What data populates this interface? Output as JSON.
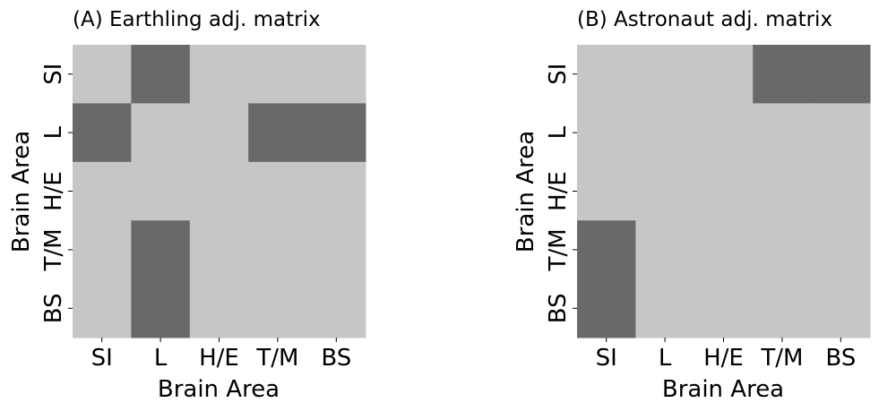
{
  "colors": {
    "zero": "#c6c6c6",
    "one": "#696969",
    "tick": "#000000"
  },
  "chart_data": [
    {
      "type": "heatmap",
      "title": "(A) Earthling adj. matrix",
      "xlabel": "Brain Area",
      "ylabel": "Brain Area",
      "x_categories": [
        "SI",
        "L",
        "H/E",
        "T/M",
        "BS"
      ],
      "y_categories": [
        "SI",
        "L",
        "H/E",
        "T/M",
        "BS"
      ],
      "values": [
        [
          0,
          1,
          0,
          0,
          0
        ],
        [
          1,
          0,
          0,
          1,
          1
        ],
        [
          0,
          0,
          0,
          0,
          0
        ],
        [
          0,
          1,
          0,
          0,
          0
        ],
        [
          0,
          1,
          0,
          0,
          0
        ]
      ],
      "colorbar": false
    },
    {
      "type": "heatmap",
      "title": "(B) Astronaut adj. matrix",
      "xlabel": "Brain Area",
      "ylabel": "Brain Area",
      "x_categories": [
        "SI",
        "L",
        "H/E",
        "T/M",
        "BS"
      ],
      "y_categories": [
        "SI",
        "L",
        "H/E",
        "T/M",
        "BS"
      ],
      "values": [
        [
          0,
          0,
          0,
          1,
          1
        ],
        [
          0,
          0,
          0,
          0,
          0
        ],
        [
          0,
          0,
          0,
          0,
          0
        ],
        [
          1,
          0,
          0,
          0,
          0
        ],
        [
          1,
          0,
          0,
          0,
          0
        ]
      ],
      "colorbar": false
    }
  ]
}
